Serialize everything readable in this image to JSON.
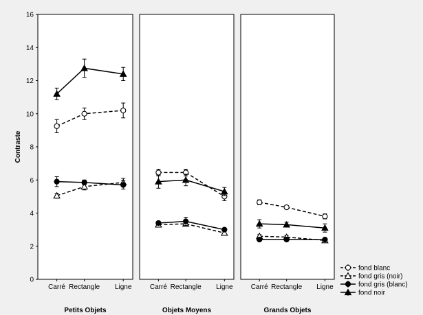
{
  "chart_data": {
    "type": "line",
    "ylabel": "Contraste",
    "ylim": [
      0,
      16
    ],
    "yticks": [
      0,
      2,
      4,
      6,
      8,
      10,
      12,
      14,
      16
    ],
    "categories": [
      "Carré",
      "Rectangle",
      "Ligne"
    ],
    "grid": true,
    "legend_position": "bottom-right",
    "panels": [
      {
        "title": "Petits Objets",
        "series": [
          {
            "name": "fond blanc",
            "values": [
              9.25,
              10.0,
              10.2
            ],
            "errors": [
              0.4,
              0.35,
              0.45
            ]
          },
          {
            "name": "fond gris (noir)",
            "values": [
              5.05,
              5.6,
              5.85
            ],
            "errors": [
              0.15,
              0.2,
              0.25
            ]
          },
          {
            "name": "fond gris (blanc)",
            "values": [
              5.9,
              5.85,
              5.7
            ],
            "errors": [
              0.3,
              0.15,
              0.25
            ]
          },
          {
            "name": "fond noir",
            "values": [
              11.2,
              12.75,
              12.4
            ],
            "errors": [
              0.35,
              0.55,
              0.4
            ]
          }
        ]
      },
      {
        "title": "Objets Moyens",
        "series": [
          {
            "name": "fond blanc",
            "values": [
              6.45,
              6.45,
              5.0
            ],
            "errors": [
              0.2,
              0.2,
              0.25
            ]
          },
          {
            "name": "fond gris (noir)",
            "values": [
              3.3,
              3.35,
              2.8
            ],
            "errors": [
              0.1,
              0.1,
              0.1
            ]
          },
          {
            "name": "fond gris (blanc)",
            "values": [
              3.4,
              3.5,
              3.0
            ],
            "errors": [
              0.1,
              0.25,
              0.1
            ]
          },
          {
            "name": "fond noir",
            "values": [
              5.9,
              6.0,
              5.3
            ],
            "errors": [
              0.4,
              0.35,
              0.25
            ]
          }
        ]
      },
      {
        "title": "Grands Objets",
        "series": [
          {
            "name": "fond blanc",
            "values": [
              4.65,
              4.35,
              3.8
            ],
            "errors": [
              0.15,
              0.1,
              0.15
            ]
          },
          {
            "name": "fond gris (noir)",
            "values": [
              2.6,
              2.55,
              2.35
            ],
            "errors": [
              0.1,
              0.1,
              0.1
            ]
          },
          {
            "name": "fond gris (blanc)",
            "values": [
              2.4,
              2.4,
              2.4
            ],
            "errors": [
              0.05,
              0.05,
              0.05
            ]
          },
          {
            "name": "fond noir",
            "values": [
              3.35,
              3.3,
              3.1
            ],
            "errors": [
              0.25,
              0.15,
              0.25
            ]
          }
        ]
      }
    ],
    "legend": [
      {
        "label": "fond blanc",
        "marker": "circle-open",
        "line": "dashed"
      },
      {
        "label": "fond gris (noir)",
        "marker": "triangle-open",
        "line": "dashed"
      },
      {
        "label": "fond gris (blanc)",
        "marker": "circle-filled",
        "line": "solid"
      },
      {
        "label": "fond noir",
        "marker": "triangle-filled",
        "line": "solid"
      }
    ]
  }
}
